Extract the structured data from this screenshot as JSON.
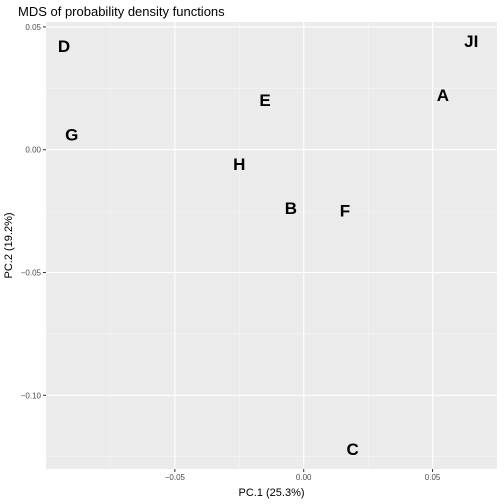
{
  "chart_data": {
    "type": "scatter",
    "title": "MDS of probability density functions",
    "xlabel": "PC.1 (25.3%)",
    "ylabel": "PC.2 (19.2%)",
    "xlim": [
      -0.1,
      0.075
    ],
    "ylim": [
      -0.13,
      0.052
    ],
    "grid": true,
    "x_ticks": [
      -0.05,
      0.0,
      0.05
    ],
    "x_tick_labels": [
      "−0.05",
      "0.00",
      "0.05"
    ],
    "y_ticks": [
      0.05,
      0.0,
      -0.05,
      -0.1
    ],
    "y_tick_labels": [
      "0.05",
      "0.00",
      "−0.05",
      "−0.10"
    ],
    "points": [
      {
        "label": "D",
        "x": -0.093,
        "y": 0.042
      },
      {
        "label": "JI",
        "x": 0.065,
        "y": 0.044
      },
      {
        "label": "A",
        "x": 0.054,
        "y": 0.022
      },
      {
        "label": "E",
        "x": -0.015,
        "y": 0.02
      },
      {
        "label": "G",
        "x": -0.09,
        "y": 0.006
      },
      {
        "label": "H",
        "x": -0.025,
        "y": -0.006
      },
      {
        "label": "B",
        "x": -0.005,
        "y": -0.024
      },
      {
        "label": "F",
        "x": 0.016,
        "y": -0.025
      },
      {
        "label": "C",
        "x": 0.019,
        "y": -0.122
      }
    ]
  }
}
